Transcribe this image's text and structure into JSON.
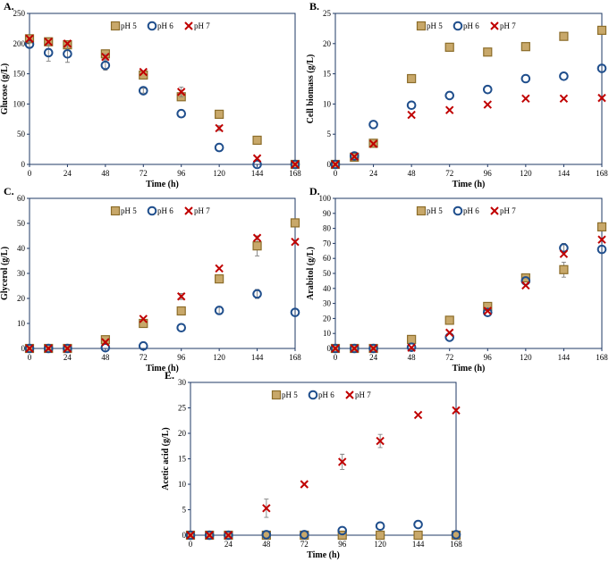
{
  "colors": {
    "axis": "#1f3864",
    "ph5_fill": "#c8a86a",
    "ph5_stroke": "#8c6d2a",
    "ph6": "#1f4e8c",
    "ph7": "#c00000",
    "error": "#808080"
  },
  "chart_data": [
    {
      "panel": "A.",
      "type": "scatter",
      "xlabel": "Time (h)",
      "ylabel": "Glucose (g/L)",
      "xlim": [
        0,
        168
      ],
      "ylim": [
        0,
        250
      ],
      "xticks": [
        0,
        24,
        48,
        72,
        96,
        120,
        144,
        168
      ],
      "yticks": [
        0,
        50,
        100,
        150,
        200,
        250
      ],
      "legend": [
        "pH 5",
        "pH 6",
        "pH 7"
      ],
      "series": [
        {
          "name": "pH 5",
          "x": [
            0,
            12,
            24,
            48,
            72,
            96,
            120,
            144,
            168
          ],
          "y": [
            208,
            203,
            198,
            183,
            148,
            112,
            83,
            40,
            0
          ],
          "err": [
            0,
            0,
            0,
            5,
            5,
            5,
            0,
            0,
            0
          ]
        },
        {
          "name": "pH 6",
          "x": [
            0,
            12,
            24,
            48,
            72,
            96,
            120,
            144,
            168
          ],
          "y": [
            199,
            185,
            183,
            164,
            122,
            84,
            28,
            0,
            0
          ],
          "err": [
            5,
            14,
            14,
            8,
            4,
            0,
            0,
            0,
            0
          ]
        },
        {
          "name": "pH 7",
          "x": [
            0,
            12,
            24,
            48,
            72,
            96,
            120,
            144,
            168
          ],
          "y": [
            208,
            203,
            200,
            178,
            153,
            120,
            60,
            10,
            0
          ],
          "err": [
            0,
            0,
            0,
            4,
            0,
            8,
            4,
            0,
            0
          ]
        }
      ]
    },
    {
      "panel": "B.",
      "type": "scatter",
      "xlabel": "Time (h)",
      "ylabel": "Cell biomass (g/L)",
      "xlim": [
        0,
        168
      ],
      "ylim": [
        0,
        25
      ],
      "xticks": [
        0,
        24,
        48,
        72,
        96,
        120,
        144,
        168
      ],
      "yticks": [
        0,
        5,
        10,
        15,
        20,
        25
      ],
      "legend": [
        "pH 5",
        "pH 6",
        "pH 7"
      ],
      "series": [
        {
          "name": "pH 5",
          "x": [
            0,
            12,
            24,
            48,
            72,
            96,
            120,
            144,
            168
          ],
          "y": [
            0,
            1.2,
            3.5,
            14.2,
            19.4,
            18.6,
            19.5,
            21.2,
            22.2
          ],
          "err": [
            0,
            0,
            0,
            0.3,
            0,
            0,
            0,
            0,
            0
          ]
        },
        {
          "name": "pH 6",
          "x": [
            0,
            12,
            24,
            48,
            72,
            96,
            120,
            144,
            168
          ],
          "y": [
            0,
            1.4,
            6.6,
            9.8,
            11.4,
            12.4,
            14.2,
            14.6,
            15.9
          ],
          "err": [
            0,
            0,
            0,
            0,
            0,
            0,
            0,
            0,
            0
          ]
        },
        {
          "name": "pH 7",
          "x": [
            0,
            12,
            24,
            48,
            72,
            96,
            120,
            144,
            168
          ],
          "y": [
            0,
            1.3,
            3.4,
            8.2,
            9.0,
            9.9,
            10.9,
            10.9,
            11.0
          ],
          "err": [
            0,
            0,
            0,
            0,
            0,
            0,
            0,
            0,
            0
          ]
        }
      ]
    },
    {
      "panel": "C.",
      "type": "scatter",
      "xlabel": "Time (h)",
      "ylabel": "Glycerol (g/L)",
      "xlim": [
        0,
        168
      ],
      "ylim": [
        0,
        60
      ],
      "xticks": [
        0,
        24,
        48,
        72,
        96,
        120,
        144,
        168
      ],
      "yticks": [
        0,
        10,
        20,
        30,
        40,
        50,
        60
      ],
      "legend": [
        "pH 5",
        "pH 6",
        "pH 7"
      ],
      "series": [
        {
          "name": "pH 5",
          "x": [
            0,
            12,
            24,
            48,
            72,
            96,
            120,
            144,
            168
          ],
          "y": [
            0,
            0,
            0,
            3.5,
            10,
            15,
            27.8,
            41,
            50.2
          ],
          "err": [
            0,
            0,
            0,
            0.8,
            0,
            0,
            0,
            4,
            1
          ]
        },
        {
          "name": "pH 6",
          "x": [
            0,
            12,
            24,
            48,
            72,
            96,
            120,
            144,
            168
          ],
          "y": [
            0,
            0,
            0,
            0.3,
            1,
            8.3,
            15.2,
            21.8,
            14.4
          ],
          "err": [
            0,
            0,
            0,
            0,
            0,
            0,
            1.5,
            1.8,
            0
          ]
        },
        {
          "name": "pH 7",
          "x": [
            0,
            12,
            24,
            48,
            72,
            96,
            120,
            144,
            168
          ],
          "y": [
            0,
            0,
            0,
            2.5,
            11.8,
            20.8,
            32,
            44.2,
            42.6
          ],
          "err": [
            0,
            0,
            0,
            0,
            0,
            1.2,
            0,
            0,
            0
          ]
        }
      ]
    },
    {
      "panel": "D.",
      "type": "scatter",
      "xlabel": "Time (h)",
      "ylabel": "Arabitol (g/L)",
      "xlim": [
        0,
        168
      ],
      "ylim": [
        0,
        100
      ],
      "xticks": [
        0,
        24,
        48,
        72,
        96,
        120,
        144,
        168
      ],
      "yticks": [
        0,
        10,
        20,
        30,
        40,
        50,
        60,
        70,
        80,
        90,
        100
      ],
      "legend": [
        "pH 5",
        "pH 6",
        "pH 7"
      ],
      "series": [
        {
          "name": "pH 5",
          "x": [
            0,
            12,
            24,
            48,
            72,
            96,
            120,
            144,
            168
          ],
          "y": [
            0,
            0,
            0,
            6,
            18.8,
            28,
            47,
            52.5,
            81
          ],
          "err": [
            0,
            0,
            0,
            0,
            0,
            0,
            0,
            5,
            0
          ]
        },
        {
          "name": "pH 6",
          "x": [
            0,
            12,
            24,
            48,
            72,
            96,
            120,
            144,
            168
          ],
          "y": [
            0,
            0,
            0,
            0.8,
            7.5,
            24,
            45,
            67,
            66
          ],
          "err": [
            0,
            0,
            0,
            0,
            0,
            0,
            0,
            3,
            0
          ]
        },
        {
          "name": "pH 7",
          "x": [
            0,
            12,
            24,
            48,
            72,
            96,
            120,
            144,
            168
          ],
          "y": [
            0,
            0,
            0,
            0.5,
            10.5,
            25,
            42,
            63,
            72.5
          ],
          "err": [
            0,
            0,
            0,
            0,
            0,
            0,
            0,
            0,
            0
          ]
        }
      ]
    },
    {
      "panel": "E.",
      "type": "scatter",
      "xlabel": "Time (h)",
      "ylabel": "Acetic acid (g/L)",
      "xlim": [
        0,
        168
      ],
      "ylim": [
        0,
        30
      ],
      "xticks": [
        0,
        24,
        48,
        72,
        96,
        120,
        144,
        168
      ],
      "yticks": [
        0,
        5,
        10,
        15,
        20,
        25,
        30
      ],
      "legend": [
        "pH 5",
        "pH 6",
        "pH 7"
      ],
      "series": [
        {
          "name": "pH 5",
          "x": [
            0,
            12,
            24,
            48,
            72,
            96,
            120,
            144,
            168
          ],
          "y": [
            0,
            0,
            0,
            0,
            0,
            0,
            0,
            0,
            0
          ],
          "err": [
            0,
            0,
            0,
            0,
            0,
            0,
            0,
            0,
            0
          ]
        },
        {
          "name": "pH 6",
          "x": [
            0,
            12,
            24,
            48,
            72,
            96,
            120,
            144,
            168
          ],
          "y": [
            0,
            0,
            0,
            0.1,
            0.1,
            0.9,
            1.8,
            2.1,
            0.1
          ],
          "err": [
            0,
            0,
            0,
            0,
            0,
            0,
            0,
            0,
            0
          ]
        },
        {
          "name": "pH 7",
          "x": [
            0,
            12,
            24,
            48,
            72,
            96,
            120,
            144,
            168
          ],
          "y": [
            0,
            0,
            0,
            5.3,
            10,
            14.4,
            18.5,
            23.6,
            24.5
          ],
          "err": [
            0,
            0,
            0,
            1.8,
            0,
            1.5,
            1.3,
            0,
            0
          ]
        }
      ]
    }
  ]
}
